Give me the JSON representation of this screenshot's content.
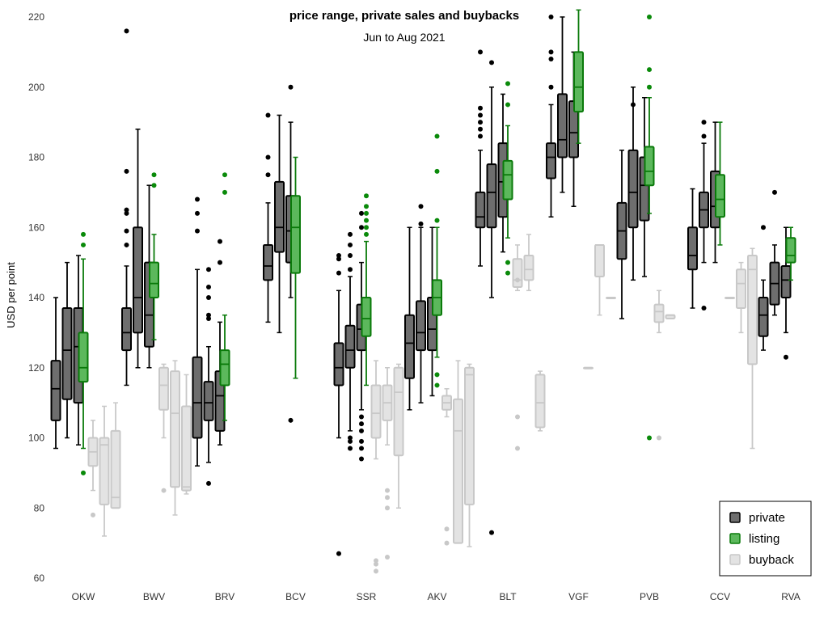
{
  "chart_data": {
    "type": "boxplot",
    "title": "price range, private sales and buybacks",
    "subtitle": "Jun to Aug 2021",
    "ylabel": "USD per point",
    "xlabel": "",
    "ylim": [
      60,
      220
    ],
    "yticks": [
      60,
      80,
      100,
      120,
      140,
      160,
      180,
      200,
      220
    ],
    "grid": false,
    "legend_position": "bottom-right",
    "categories": [
      "OKW",
      "BWV",
      "BRV",
      "BCV",
      "SSR",
      "AKV",
      "BLT",
      "VGF",
      "PVB",
      "CCV",
      "RVA"
    ],
    "series": [
      {
        "name": "private",
        "fill": "#6e6e6e",
        "stroke": "#000000",
        "boxes": [
          {
            "category": "OKW",
            "whislo": 97,
            "q1": 105,
            "med": 114,
            "q3": 122,
            "whishi": 140,
            "fliers": []
          },
          {
            "category": "OKW",
            "whislo": 100,
            "q1": 111,
            "med": 125,
            "q3": 137,
            "whishi": 150,
            "fliers": []
          },
          {
            "category": "OKW",
            "whislo": 98,
            "q1": 110,
            "med": 126,
            "q3": 137,
            "whishi": 152,
            "fliers": []
          },
          {
            "category": "BWV",
            "whislo": 115,
            "q1": 125,
            "med": 130,
            "q3": 137,
            "whishi": 149,
            "fliers": [
              155,
              159,
              164,
              165,
              176,
              216
            ]
          },
          {
            "category": "BWV",
            "whislo": 120,
            "q1": 130,
            "med": 140,
            "q3": 160,
            "whishi": 188,
            "fliers": []
          },
          {
            "category": "BWV",
            "whislo": 120,
            "q1": 126,
            "med": 135,
            "q3": 150,
            "whishi": 172,
            "fliers": []
          },
          {
            "category": "BRV",
            "whislo": 92,
            "q1": 100,
            "med": 110,
            "q3": 123,
            "whishi": 148,
            "fliers": [
              159,
              164,
              168
            ]
          },
          {
            "category": "BRV",
            "whislo": 93,
            "q1": 105,
            "med": 110,
            "q3": 116,
            "whishi": 126,
            "fliers": [
              87,
              134,
              135,
              140,
              143,
              148
            ]
          },
          {
            "category": "BRV",
            "whislo": 98,
            "q1": 102,
            "med": 112,
            "q3": 119,
            "whishi": 133,
            "fliers": [
              150,
              156
            ]
          },
          {
            "category": "BCV",
            "whislo": 133,
            "q1": 145,
            "med": 149,
            "q3": 155,
            "whishi": 167,
            "fliers": [
              175,
              180,
              192
            ]
          },
          {
            "category": "BCV",
            "whislo": 130,
            "q1": 153,
            "med": 160,
            "q3": 173,
            "whishi": 192,
            "fliers": []
          },
          {
            "category": "BCV",
            "whislo": 140,
            "q1": 150,
            "med": 159,
            "q3": 169,
            "whishi": 190,
            "fliers": [
              105,
              200
            ]
          },
          {
            "category": "SSR",
            "whislo": 100,
            "q1": 115,
            "med": 120,
            "q3": 127,
            "whishi": 142,
            "fliers": [
              67,
              147,
              151,
              152
            ]
          },
          {
            "category": "SSR",
            "whislo": 102,
            "q1": 120,
            "med": 125,
            "q3": 132,
            "whishi": 146,
            "fliers": [
              97,
              99,
              100,
              148,
              152,
              155,
              158
            ]
          },
          {
            "category": "SSR",
            "whislo": 108,
            "q1": 125,
            "med": 131,
            "q3": 138,
            "whishi": 150,
            "fliers": [
              94,
              97,
              99,
              102,
              104,
              106,
              160,
              164
            ]
          },
          {
            "category": "AKV",
            "whislo": 108,
            "q1": 117,
            "med": 127,
            "q3": 135,
            "whishi": 160,
            "fliers": []
          },
          {
            "category": "AKV",
            "whislo": 110,
            "q1": 125,
            "med": 130,
            "q3": 139,
            "whishi": 160,
            "fliers": [
              161,
              166
            ]
          },
          {
            "category": "AKV",
            "whislo": 112,
            "q1": 125,
            "med": 131,
            "q3": 140,
            "whishi": 160,
            "fliers": []
          },
          {
            "category": "BLT",
            "whislo": 149,
            "q1": 160,
            "med": 163,
            "q3": 170,
            "whishi": 182,
            "fliers": [
              186,
              188,
              190,
              192,
              194,
              210
            ]
          },
          {
            "category": "BLT",
            "whislo": 140,
            "q1": 160,
            "med": 170,
            "q3": 178,
            "whishi": 200,
            "fliers": [
              73,
              207
            ]
          },
          {
            "category": "BLT",
            "whislo": 153,
            "q1": 163,
            "med": 173,
            "q3": 184,
            "whishi": 198,
            "fliers": []
          },
          {
            "category": "VGF",
            "whislo": 163,
            "q1": 174,
            "med": 180,
            "q3": 184,
            "whishi": 195,
            "fliers": [
              200,
              208,
              210,
              220
            ]
          },
          {
            "category": "VGF",
            "whislo": 170,
            "q1": 180,
            "med": 185,
            "q3": 198,
            "whishi": 220,
            "fliers": []
          },
          {
            "category": "VGF",
            "whislo": 166,
            "q1": 180,
            "med": 187,
            "q3": 196,
            "whishi": 210,
            "fliers": []
          },
          {
            "category": "PVB",
            "whislo": 134,
            "q1": 151,
            "med": 159,
            "q3": 167,
            "whishi": 182,
            "fliers": []
          },
          {
            "category": "PVB",
            "whislo": 145,
            "q1": 160,
            "med": 170,
            "q3": 182,
            "whishi": 200,
            "fliers": [
              195
            ]
          },
          {
            "category": "PVB",
            "whislo": 146,
            "q1": 162,
            "med": 172,
            "q3": 180,
            "whishi": 197,
            "fliers": []
          },
          {
            "category": "CCV",
            "whislo": 137,
            "q1": 148,
            "med": 152,
            "q3": 160,
            "whishi": 171,
            "fliers": []
          },
          {
            "category": "CCV",
            "whislo": 150,
            "q1": 160,
            "med": 165,
            "q3": 170,
            "whishi": 184,
            "fliers": [
              137,
              186,
              190
            ]
          },
          {
            "category": "CCV",
            "whislo": 150,
            "q1": 160,
            "med": 166,
            "q3": 176,
            "whishi": 190,
            "fliers": []
          },
          {
            "category": "RVA",
            "whislo": 125,
            "q1": 129,
            "med": 135,
            "q3": 140,
            "whishi": 145,
            "fliers": [
              160
            ]
          },
          {
            "category": "RVA",
            "whislo": 135,
            "q1": 138,
            "med": 144,
            "q3": 150,
            "whishi": 155,
            "fliers": [
              170
            ]
          },
          {
            "category": "RVA",
            "whislo": 130,
            "q1": 140,
            "med": 145,
            "q3": 149,
            "whishi": 160,
            "fliers": [
              123
            ]
          }
        ]
      },
      {
        "name": "listing",
        "fill": "#5cb85c",
        "stroke": "#007700",
        "boxes": [
          {
            "category": "OKW",
            "whislo": 97,
            "q1": 116,
            "med": 120,
            "q3": 130,
            "whishi": 151,
            "fliers": [
              90,
              155,
              158
            ]
          },
          {
            "category": "BWV",
            "whislo": 128,
            "q1": 140,
            "med": 144,
            "q3": 150,
            "whishi": 158,
            "fliers": [
              172,
              175
            ]
          },
          {
            "category": "BRV",
            "whislo": 105,
            "q1": 115,
            "med": 121,
            "q3": 125,
            "whishi": 135,
            "fliers": [
              170,
              175
            ]
          },
          {
            "category": "BCV",
            "whislo": 117,
            "q1": 147,
            "med": 160,
            "q3": 169,
            "whishi": 180,
            "fliers": []
          },
          {
            "category": "SSR",
            "whislo": 115,
            "q1": 129,
            "med": 134,
            "q3": 140,
            "whishi": 156,
            "fliers": [
              158,
              160,
              162,
              164,
              166,
              169
            ]
          },
          {
            "category": "AKV",
            "whislo": 123,
            "q1": 135,
            "med": 140,
            "q3": 145,
            "whishi": 160,
            "fliers": [
              115,
              118,
              162,
              176,
              186
            ]
          },
          {
            "category": "BLT",
            "whislo": 157,
            "q1": 168,
            "med": 175,
            "q3": 179,
            "whishi": 189,
            "fliers": [
              147,
              150,
              195,
              201
            ]
          },
          {
            "category": "VGF",
            "whislo": 184,
            "q1": 193,
            "med": 200,
            "q3": 210,
            "whishi": 222,
            "fliers": []
          },
          {
            "category": "PVB",
            "whislo": 164,
            "q1": 172,
            "med": 176,
            "q3": 183,
            "whishi": 197,
            "fliers": [
              100,
              200,
              205,
              220,
              225
            ]
          },
          {
            "category": "CCV",
            "whislo": 155,
            "q1": 163,
            "med": 168,
            "q3": 175,
            "whishi": 190,
            "fliers": []
          },
          {
            "category": "RVA",
            "whislo": 145,
            "q1": 150,
            "med": 152,
            "q3": 157,
            "whishi": 160,
            "fliers": []
          }
        ]
      },
      {
        "name": "buyback",
        "fill": "#e3e3e3",
        "stroke": "#c8c8c8",
        "boxes": [
          {
            "category": "OKW",
            "whislo": 85,
            "q1": 92,
            "med": 96,
            "q3": 100,
            "whishi": 105,
            "fliers": [
              78
            ]
          },
          {
            "category": "OKW",
            "whislo": 72,
            "q1": 81,
            "med": 98,
            "q3": 100,
            "whishi": 109,
            "fliers": []
          },
          {
            "category": "OKW",
            "whislo": 80,
            "q1": 80,
            "med": 83,
            "q3": 102,
            "whishi": 110,
            "fliers": []
          },
          {
            "category": "BWV",
            "whislo": 100,
            "q1": 108,
            "med": 115,
            "q3": 120,
            "whishi": 121,
            "fliers": [
              85
            ]
          },
          {
            "category": "BWV",
            "whislo": 78,
            "q1": 86,
            "med": 107,
            "q3": 119,
            "whishi": 122,
            "fliers": []
          },
          {
            "category": "BWV",
            "whislo": 84,
            "q1": 85,
            "med": 86,
            "q3": 109,
            "whishi": 118,
            "fliers": []
          },
          {
            "category": "SSR",
            "whislo": 94,
            "q1": 100,
            "med": 107,
            "q3": 115,
            "whishi": 122,
            "fliers": [
              62,
              64,
              65
            ]
          },
          {
            "category": "SSR",
            "whislo": 98,
            "q1": 105,
            "med": 110,
            "q3": 115,
            "whishi": 120,
            "fliers": [
              66,
              80,
              83,
              85
            ]
          },
          {
            "category": "SSR",
            "whislo": 80,
            "q1": 95,
            "med": 113,
            "q3": 120,
            "whishi": 121,
            "fliers": []
          },
          {
            "category": "AKV",
            "whislo": 106,
            "q1": 108,
            "med": 110,
            "q3": 112,
            "whishi": 114,
            "fliers": [
              70,
              74
            ]
          },
          {
            "category": "AKV",
            "whislo": 70,
            "q1": 70,
            "med": 102,
            "q3": 111,
            "whishi": 122,
            "fliers": []
          },
          {
            "category": "AKV",
            "whislo": 69,
            "q1": 81,
            "med": 118,
            "q3": 120,
            "whishi": 121,
            "fliers": []
          },
          {
            "category": "BLT",
            "whislo": 142,
            "q1": 143,
            "med": 145,
            "q3": 151,
            "whishi": 155,
            "fliers": [
              97,
              106,
              145
            ]
          },
          {
            "category": "BLT",
            "whislo": 142,
            "q1": 145,
            "med": 148,
            "q3": 152,
            "whishi": 158,
            "fliers": []
          },
          {
            "category": "BLT",
            "whislo": 102,
            "q1": 103,
            "med": 110,
            "q3": 118,
            "whishi": 119,
            "fliers": []
          },
          {
            "category": "VGF",
            "whislo": 120,
            "q1": 120,
            "med": 120,
            "q3": 120,
            "whishi": 120,
            "fliers": []
          },
          {
            "category": "VGF",
            "whislo": 135,
            "q1": 146,
            "med": 155,
            "q3": 155,
            "whishi": 155,
            "fliers": []
          },
          {
            "category": "VGF",
            "whislo": 140,
            "q1": 140,
            "med": 140,
            "q3": 140,
            "whishi": 140,
            "fliers": []
          },
          {
            "category": "PVB",
            "whislo": 130,
            "q1": 133,
            "med": 136,
            "q3": 138,
            "whishi": 142,
            "fliers": [
              100
            ]
          },
          {
            "category": "PVB",
            "whislo": 134,
            "q1": 134,
            "med": 135,
            "q3": 135,
            "whishi": 135,
            "fliers": []
          },
          {
            "category": "CCV",
            "whislo": 140,
            "q1": 140,
            "med": 140,
            "q3": 140,
            "whishi": 140,
            "fliers": []
          },
          {
            "category": "CCV",
            "whislo": 130,
            "q1": 137,
            "med": 144,
            "q3": 148,
            "whishi": 150,
            "fliers": []
          },
          {
            "category": "CCV",
            "whislo": 97,
            "q1": 121,
            "med": 148,
            "q3": 152,
            "whishi": 154,
            "fliers": []
          }
        ]
      }
    ]
  }
}
